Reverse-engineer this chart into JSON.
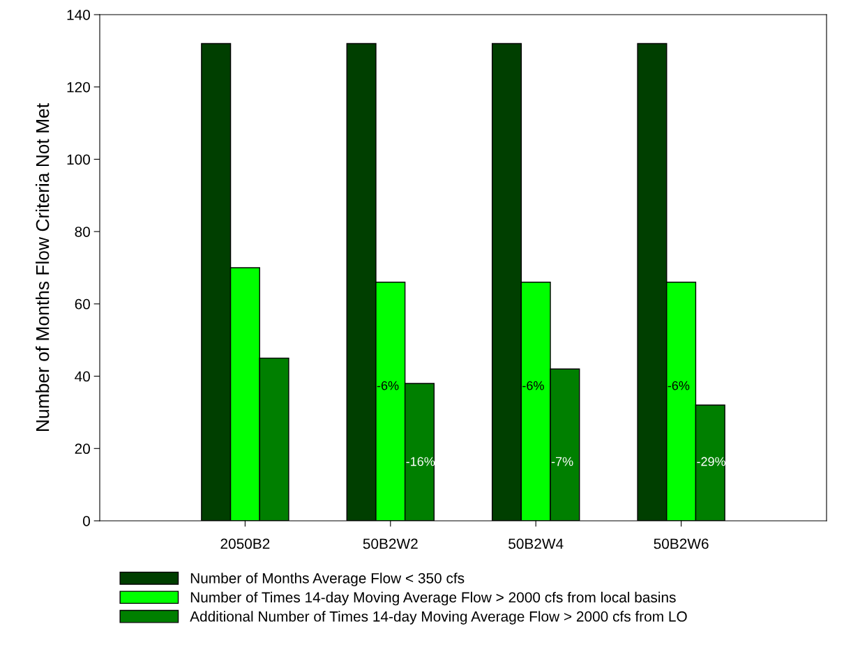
{
  "chart_data": {
    "type": "bar",
    "ylabel": "Number of Months Flow Criteria Not Met",
    "categories": [
      "2050B2",
      "50B2W2",
      "50B2W4",
      "50B2W6"
    ],
    "series": [
      {
        "name": "Number of Months Average Flow < 350 cfs",
        "color": "#003f00",
        "values": [
          132,
          132,
          132,
          132
        ]
      },
      {
        "name": "Number of Times 14-day Moving Average Flow > 2000 cfs from local basins",
        "color": "#00ff00",
        "values": [
          70,
          66,
          66,
          66
        ]
      },
      {
        "name": "Additional Number of Times 14-day Moving Average Flow > 2000 cfs from LO",
        "color": "#007f00",
        "values": [
          45,
          38,
          42,
          32
        ]
      }
    ],
    "annotations": [
      "-6%",
      "-16%",
      "-6%",
      "-7%",
      "-6%",
      "-29%"
    ],
    "ylim": [
      0,
      140
    ],
    "yticks": [
      0,
      20,
      40,
      60,
      80,
      100,
      120,
      140
    ],
    "grid": false,
    "legend": "bottom"
  }
}
